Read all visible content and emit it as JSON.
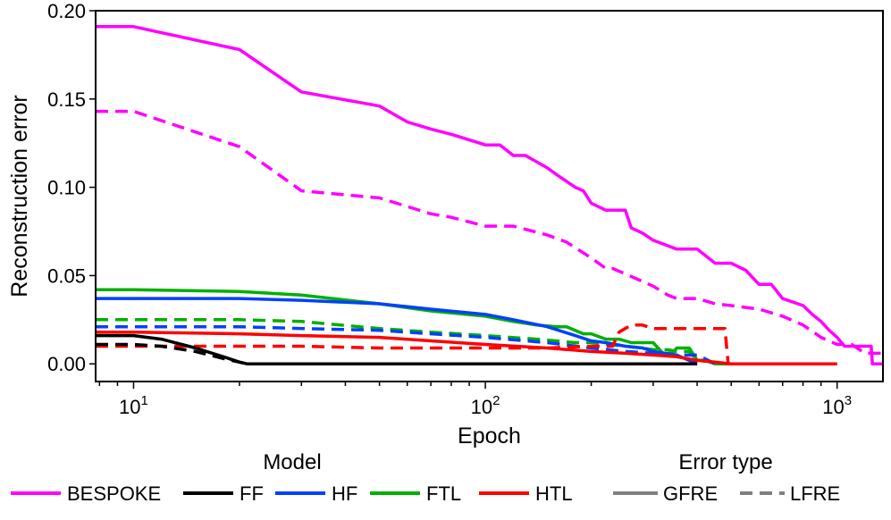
{
  "chart_data": {
    "type": "line",
    "title": "",
    "xlabel": "Epoch",
    "ylabel": "Reconstruction error",
    "xscale": "log",
    "xlim": [
      7.8,
      1350
    ],
    "ylim": [
      -0.01,
      0.2
    ],
    "x_ticks": [
      {
        "value": 10,
        "base": "10",
        "exp": "1"
      },
      {
        "value": 100,
        "base": "10",
        "exp": "2"
      },
      {
        "value": 1000,
        "base": "10",
        "exp": "3"
      }
    ],
    "y_ticks": [
      {
        "value": 0.0,
        "label": "0.00"
      },
      {
        "value": 0.05,
        "label": "0.05"
      },
      {
        "value": 0.1,
        "label": "0.10"
      },
      {
        "value": 0.15,
        "label": "0.15"
      },
      {
        "value": 0.2,
        "label": "0.20"
      }
    ],
    "grid": false,
    "legend": {
      "position": "bottom",
      "model_title": "Model",
      "error_title": "Error type",
      "models": [
        {
          "name": "BESPOKE",
          "color": "#ff00ff"
        },
        {
          "name": "FF",
          "color": "#000000"
        },
        {
          "name": "HF",
          "color": "#0040ff"
        },
        {
          "name": "FTL",
          "color": "#00b000"
        },
        {
          "name": "HTL",
          "color": "#ff0000"
        }
      ],
      "error_types": [
        {
          "name": "GFRE",
          "dash": "solid",
          "color": "#808080"
        },
        {
          "name": "LFRE",
          "dash": "dashed",
          "color": "#808080"
        }
      ]
    },
    "series": [
      {
        "name": "BESPOKE GFRE",
        "model": "BESPOKE",
        "error_type": "GFRE",
        "color": "#ff00ff",
        "dash": "solid",
        "points": [
          [
            7.8,
            0.191
          ],
          [
            10,
            0.191
          ],
          [
            20,
            0.178
          ],
          [
            30,
            0.154
          ],
          [
            50,
            0.146
          ],
          [
            60,
            0.137
          ],
          [
            70,
            0.133
          ],
          [
            80,
            0.13
          ],
          [
            100,
            0.124
          ],
          [
            110,
            0.124
          ],
          [
            120,
            0.118
          ],
          [
            130,
            0.118
          ],
          [
            150,
            0.111
          ],
          [
            160,
            0.107
          ],
          [
            180,
            0.1
          ],
          [
            190,
            0.098
          ],
          [
            200,
            0.091
          ],
          [
            220,
            0.087
          ],
          [
            250,
            0.087
          ],
          [
            260,
            0.077
          ],
          [
            280,
            0.074
          ],
          [
            300,
            0.07
          ],
          [
            350,
            0.065
          ],
          [
            400,
            0.065
          ],
          [
            450,
            0.057
          ],
          [
            500,
            0.057
          ],
          [
            550,
            0.053
          ],
          [
            600,
            0.045
          ],
          [
            650,
            0.045
          ],
          [
            700,
            0.037
          ],
          [
            800,
            0.033
          ],
          [
            850,
            0.028
          ],
          [
            900,
            0.024
          ],
          [
            950,
            0.019
          ],
          [
            1000,
            0.015
          ],
          [
            1050,
            0.01
          ],
          [
            1250,
            0.01
          ],
          [
            1260,
            0.0
          ],
          [
            1350,
            0.0
          ]
        ]
      },
      {
        "name": "BESPOKE LFRE",
        "model": "BESPOKE",
        "error_type": "LFRE",
        "color": "#ff00ff",
        "dash": "dashed",
        "points": [
          [
            7.8,
            0.143
          ],
          [
            10,
            0.143
          ],
          [
            20,
            0.123
          ],
          [
            30,
            0.098
          ],
          [
            50,
            0.094
          ],
          [
            70,
            0.085
          ],
          [
            80,
            0.083
          ],
          [
            100,
            0.078
          ],
          [
            120,
            0.078
          ],
          [
            150,
            0.073
          ],
          [
            170,
            0.069
          ],
          [
            200,
            0.06
          ],
          [
            220,
            0.054
          ],
          [
            230,
            0.054
          ],
          [
            250,
            0.051
          ],
          [
            300,
            0.044
          ],
          [
            330,
            0.039
          ],
          [
            350,
            0.037
          ],
          [
            400,
            0.037
          ],
          [
            450,
            0.034
          ],
          [
            500,
            0.033
          ],
          [
            600,
            0.031
          ],
          [
            700,
            0.027
          ],
          [
            800,
            0.022
          ],
          [
            900,
            0.015
          ],
          [
            1000,
            0.011
          ],
          [
            1100,
            0.011
          ],
          [
            1200,
            0.006
          ],
          [
            1350,
            0.006
          ]
        ]
      },
      {
        "name": "FTL GFRE",
        "model": "FTL",
        "error_type": "GFRE",
        "color": "#00b000",
        "dash": "solid",
        "points": [
          [
            7.8,
            0.042
          ],
          [
            10,
            0.042
          ],
          [
            20,
            0.041
          ],
          [
            30,
            0.039
          ],
          [
            50,
            0.034
          ],
          [
            70,
            0.03
          ],
          [
            100,
            0.027
          ],
          [
            120,
            0.024
          ],
          [
            140,
            0.022
          ],
          [
            160,
            0.021
          ],
          [
            170,
            0.021
          ],
          [
            190,
            0.017
          ],
          [
            200,
            0.017
          ],
          [
            220,
            0.014
          ],
          [
            240,
            0.014
          ],
          [
            260,
            0.012
          ],
          [
            280,
            0.012
          ],
          [
            300,
            0.012
          ],
          [
            320,
            0.006
          ],
          [
            340,
            0.006
          ],
          [
            350,
            0.009
          ],
          [
            380,
            0.009
          ],
          [
            400,
            0.002
          ],
          [
            420,
            0.002
          ],
          [
            450,
            0.0
          ],
          [
            1000,
            0.0
          ]
        ]
      },
      {
        "name": "FTL LFRE",
        "model": "FTL",
        "error_type": "LFRE",
        "color": "#00b000",
        "dash": "dashed",
        "points": [
          [
            7.8,
            0.025
          ],
          [
            10,
            0.025
          ],
          [
            20,
            0.025
          ],
          [
            30,
            0.024
          ],
          [
            50,
            0.02
          ],
          [
            70,
            0.018
          ],
          [
            100,
            0.016
          ],
          [
            140,
            0.014
          ],
          [
            180,
            0.012
          ],
          [
            200,
            0.012
          ],
          [
            250,
            0.01
          ],
          [
            280,
            0.009
          ],
          [
            300,
            0.008
          ],
          [
            330,
            0.008
          ],
          [
            350,
            0.007
          ],
          [
            380,
            0.007
          ],
          [
            400,
            0.002
          ],
          [
            450,
            0.001
          ]
        ]
      },
      {
        "name": "HF GFRE",
        "model": "HF",
        "error_type": "GFRE",
        "color": "#0040ff",
        "dash": "solid",
        "points": [
          [
            7.8,
            0.037
          ],
          [
            10,
            0.037
          ],
          [
            20,
            0.037
          ],
          [
            30,
            0.036
          ],
          [
            50,
            0.034
          ],
          [
            70,
            0.031
          ],
          [
            100,
            0.028
          ],
          [
            120,
            0.025
          ],
          [
            150,
            0.021
          ],
          [
            180,
            0.016
          ],
          [
            200,
            0.013
          ],
          [
            220,
            0.012
          ],
          [
            250,
            0.01
          ],
          [
            280,
            0.009
          ],
          [
            300,
            0.007
          ],
          [
            350,
            0.005
          ],
          [
            400,
            0.0
          ]
        ]
      },
      {
        "name": "HF LFRE",
        "model": "HF",
        "error_type": "LFRE",
        "color": "#0040ff",
        "dash": "dashed",
        "points": [
          [
            7.8,
            0.021
          ],
          [
            10,
            0.021
          ],
          [
            20,
            0.021
          ],
          [
            30,
            0.02
          ],
          [
            50,
            0.019
          ],
          [
            70,
            0.017
          ],
          [
            100,
            0.015
          ],
          [
            150,
            0.012
          ],
          [
            200,
            0.009
          ],
          [
            250,
            0.007
          ],
          [
            300,
            0.006
          ],
          [
            350,
            0.005
          ],
          [
            400,
            0.005
          ],
          [
            420,
            0.003
          ],
          [
            450,
            0.0
          ]
        ]
      },
      {
        "name": "HTL GFRE",
        "model": "HTL",
        "error_type": "GFRE",
        "color": "#ff0000",
        "dash": "solid",
        "points": [
          [
            7.8,
            0.018
          ],
          [
            10,
            0.018
          ],
          [
            20,
            0.017
          ],
          [
            30,
            0.016
          ],
          [
            50,
            0.015
          ],
          [
            70,
            0.013
          ],
          [
            100,
            0.011
          ],
          [
            150,
            0.009
          ],
          [
            200,
            0.007
          ],
          [
            250,
            0.006
          ],
          [
            300,
            0.005
          ],
          [
            350,
            0.004
          ],
          [
            400,
            0.002
          ],
          [
            450,
            0.001
          ],
          [
            500,
            0.0
          ],
          [
            1000,
            0.0
          ]
        ]
      },
      {
        "name": "HTL LFRE",
        "model": "HTL",
        "error_type": "LFRE",
        "color": "#ff0000",
        "dash": "dashed",
        "points": [
          [
            7.8,
            0.01
          ],
          [
            10,
            0.01
          ],
          [
            20,
            0.01
          ],
          [
            30,
            0.01
          ],
          [
            50,
            0.009
          ],
          [
            70,
            0.009
          ],
          [
            100,
            0.009
          ],
          [
            150,
            0.009
          ],
          [
            200,
            0.01
          ],
          [
            230,
            0.01
          ],
          [
            240,
            0.018
          ],
          [
            260,
            0.022
          ],
          [
            280,
            0.022
          ],
          [
            300,
            0.02
          ],
          [
            330,
            0.02
          ],
          [
            350,
            0.02
          ],
          [
            380,
            0.02
          ],
          [
            400,
            0.02
          ],
          [
            420,
            0.02
          ],
          [
            440,
            0.02
          ],
          [
            460,
            0.02
          ],
          [
            480,
            0.02
          ],
          [
            490,
            0.0
          ],
          [
            550,
            0.0
          ]
        ]
      },
      {
        "name": "FF GFRE",
        "model": "FF",
        "error_type": "GFRE",
        "color": "#000000",
        "dash": "solid",
        "points": [
          [
            7.8,
            0.016
          ],
          [
            10,
            0.016
          ],
          [
            12,
            0.014
          ],
          [
            15,
            0.009
          ],
          [
            18,
            0.004
          ],
          [
            20,
            0.001
          ],
          [
            21,
            0.0
          ],
          [
            50,
            0.0
          ],
          [
            100,
            0.0
          ],
          [
            200,
            0.0
          ],
          [
            400,
            0.0
          ]
        ]
      },
      {
        "name": "FF LFRE",
        "model": "FF",
        "error_type": "LFRE",
        "color": "#000000",
        "dash": "dashed",
        "points": [
          [
            7.8,
            0.011
          ],
          [
            10,
            0.011
          ],
          [
            12,
            0.01
          ],
          [
            15,
            0.007
          ],
          [
            18,
            0.003
          ],
          [
            20,
            0.001
          ],
          [
            21,
            0.0
          ],
          [
            100,
            0.0
          ],
          [
            400,
            0.0
          ]
        ]
      }
    ]
  }
}
